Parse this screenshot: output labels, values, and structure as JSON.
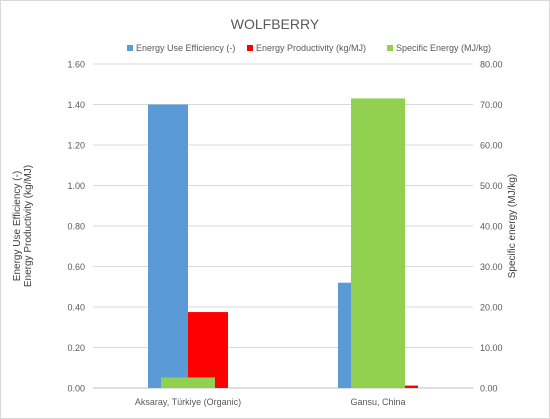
{
  "chart_data": {
    "type": "bar",
    "title": "WOLFBERRY",
    "categories": [
      "Aksaray, Türkiye (Organic)",
      "Gansu, China"
    ],
    "series": [
      {
        "name": "Energy Use Efficiency (-)",
        "axis": "left",
        "color": "#5b9bd5",
        "values": [
          1.4,
          0.52
        ]
      },
      {
        "name": "Energy Productivity (kg/MJ)",
        "axis": "left",
        "color": "#ff0000",
        "values": [
          0.375,
          0.012
        ]
      },
      {
        "name": "Specific Energy (MJ/kg)",
        "axis": "right",
        "color": "#92d050",
        "values": [
          2.6,
          71.5
        ]
      }
    ],
    "y_left": {
      "label_line1": "Energy Use Efficiency (-)",
      "label_line2": "Energy Productivity (kg/MJ)",
      "ylim": [
        0,
        1.6
      ],
      "ticks": [
        "0.00",
        "0.20",
        "0.40",
        "0.60",
        "0.80",
        "1.00",
        "1.20",
        "1.40",
        "1.60"
      ]
    },
    "y_right": {
      "label": "Specific energy (MJ/kg)",
      "ylim": [
        0,
        80
      ],
      "ticks": [
        "0.00",
        "10.00",
        "20.00",
        "30.00",
        "40.00",
        "50.00",
        "60.00",
        "70.00",
        "80.00"
      ]
    },
    "grid": true,
    "legend_position": "top"
  }
}
